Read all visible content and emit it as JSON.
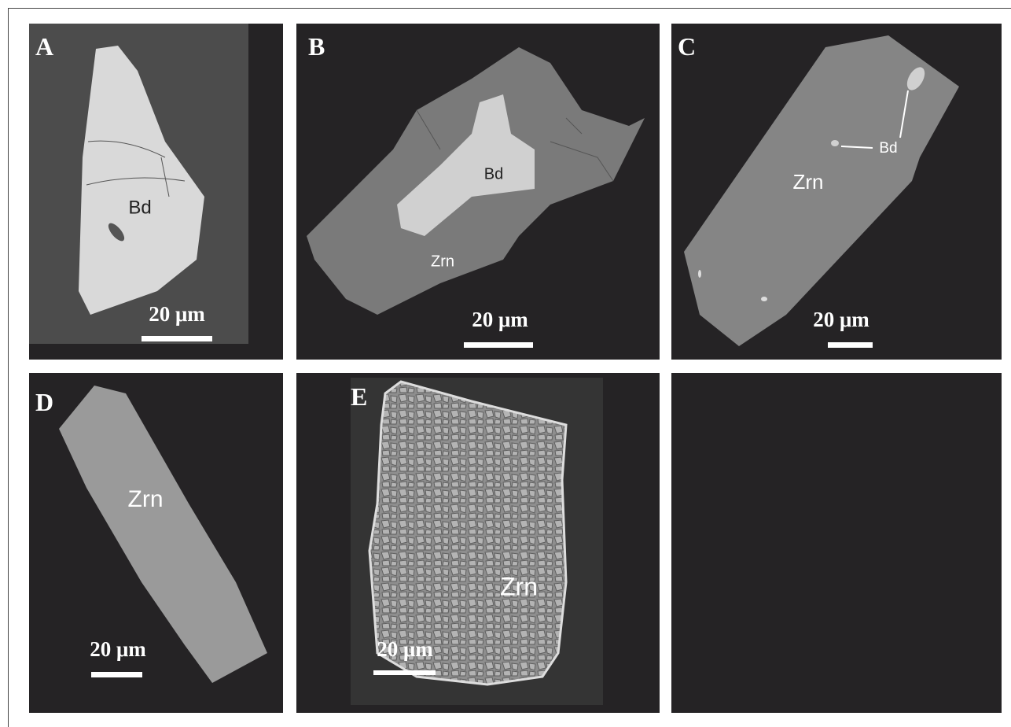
{
  "panels": [
    {
      "letter": "A",
      "labels": [
        "Bd"
      ],
      "scale": "20 μm"
    },
    {
      "letter": "B",
      "labels": [
        "Bd",
        "Zrn"
      ],
      "scale": "20 μm"
    },
    {
      "letter": "C",
      "labels": [
        "Zrn",
        "Bd"
      ],
      "scale": "20 μm"
    },
    {
      "letter": "D",
      "labels": [
        "Zrn"
      ],
      "scale": "20 μm"
    },
    {
      "letter": "E",
      "labels": [
        "Zrn"
      ],
      "scale": "20 μm"
    }
  ]
}
